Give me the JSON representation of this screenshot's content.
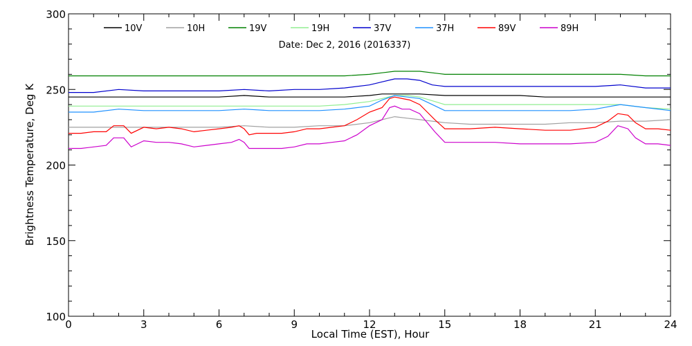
{
  "chart_data": {
    "type": "line",
    "title": "Date: Dec  2, 2016 (2016337)",
    "xlabel": "Local Time (EST), Hour",
    "ylabel": "Brightness Temperature, Deg K",
    "xlim": [
      0,
      24
    ],
    "ylim": [
      100,
      300
    ],
    "x_ticks": [
      "0",
      "3",
      "6",
      "9",
      "12",
      "15",
      "18",
      "21",
      "24"
    ],
    "y_ticks": [
      "100",
      "150",
      "200",
      "250",
      "300"
    ],
    "grid": false,
    "legend_position": "top",
    "series": [
      {
        "name": "10V",
        "color": "#000000",
        "x": [
          0,
          1,
          2,
          3,
          4,
          5,
          6,
          7,
          8,
          9,
          10,
          11,
          12,
          12.5,
          13,
          13.5,
          14,
          15,
          16,
          17,
          18,
          19,
          20,
          21,
          22,
          23,
          24
        ],
        "y": [
          245,
          245,
          245,
          245,
          245,
          245,
          245,
          246,
          245,
          245,
          245,
          245,
          246,
          247,
          247,
          247,
          247,
          246,
          246,
          246,
          246,
          245,
          245,
          245,
          245,
          245,
          245
        ]
      },
      {
        "name": "10H",
        "color": "#a0a0a0",
        "x": [
          0,
          1,
          2,
          3,
          4,
          5,
          6,
          7,
          8,
          9,
          10,
          11,
          12,
          12.5,
          13,
          13.5,
          14,
          15,
          16,
          17,
          18,
          19,
          20,
          21,
          22,
          23,
          24
        ],
        "y": [
          225,
          225,
          225,
          225,
          225,
          225,
          225,
          226,
          225,
          225,
          226,
          226,
          228,
          230,
          232,
          231,
          230,
          228,
          227,
          227,
          227,
          227,
          228,
          228,
          229,
          229,
          230
        ]
      },
      {
        "name": "19V",
        "color": "#008000",
        "x": [
          0,
          1,
          2,
          3,
          4,
          5,
          6,
          7,
          8,
          9,
          10,
          11,
          12,
          12.5,
          13,
          13.5,
          14,
          15,
          16,
          17,
          18,
          19,
          20,
          21,
          22,
          23,
          24
        ],
        "y": [
          259,
          259,
          259,
          259,
          259,
          259,
          259,
          259,
          259,
          259,
          259,
          259,
          260,
          261,
          262,
          262,
          262,
          260,
          260,
          260,
          260,
          260,
          260,
          260,
          260,
          259,
          259
        ]
      },
      {
        "name": "19H",
        "color": "#90ee90",
        "x": [
          0,
          1,
          2,
          3,
          4,
          5,
          6,
          7,
          8,
          9,
          10,
          11,
          12,
          12.5,
          13,
          13.5,
          14,
          15,
          16,
          17,
          18,
          19,
          20,
          21,
          22,
          23,
          24
        ],
        "y": [
          239,
          239,
          239,
          239,
          239,
          239,
          239,
          239,
          239,
          239,
          239,
          240,
          242,
          244,
          246,
          246,
          245,
          240,
          240,
          240,
          240,
          240,
          240,
          240,
          240,
          238,
          237
        ]
      },
      {
        "name": "37V",
        "color": "#0000cd",
        "x": [
          0,
          1,
          2,
          3,
          4,
          5,
          6,
          7,
          8,
          9,
          10,
          11,
          12,
          12.5,
          13,
          13.5,
          14,
          14.5,
          15,
          16,
          17,
          18,
          19,
          20,
          21,
          22,
          23,
          24
        ],
        "y": [
          248,
          248,
          250,
          249,
          249,
          249,
          249,
          250,
          249,
          250,
          250,
          251,
          253,
          255,
          257,
          257,
          256,
          253,
          252,
          252,
          252,
          252,
          252,
          252,
          252,
          253,
          251,
          251
        ]
      },
      {
        "name": "37H",
        "color": "#1e90ff",
        "x": [
          0,
          1,
          2,
          3,
          4,
          5,
          6,
          7,
          8,
          9,
          10,
          11,
          12,
          12.5,
          13,
          13.5,
          14,
          14.5,
          15,
          16,
          17,
          18,
          19,
          20,
          21,
          22,
          23,
          24
        ],
        "y": [
          235,
          235,
          237,
          236,
          236,
          236,
          236,
          237,
          236,
          236,
          236,
          237,
          239,
          243,
          246,
          245,
          244,
          240,
          236,
          236,
          236,
          236,
          236,
          236,
          237,
          240,
          238,
          236
        ]
      },
      {
        "name": "89V",
        "color": "#ff0000",
        "x": [
          0,
          0.5,
          1,
          1.5,
          1.8,
          2.2,
          2.5,
          3,
          3.5,
          4,
          4.5,
          5,
          5.5,
          6,
          6.5,
          6.8,
          7,
          7.2,
          7.5,
          8,
          8.5,
          9,
          9.5,
          10,
          10.5,
          11,
          11.5,
          12,
          12.5,
          12.8,
          13,
          13.3,
          13.6,
          14,
          14.3,
          14.6,
          15,
          16,
          17,
          18,
          19,
          20,
          21,
          21.5,
          21.9,
          22.3,
          22.6,
          23,
          23.5,
          24
        ],
        "y": [
          221,
          221,
          222,
          222,
          226,
          226,
          221,
          225,
          224,
          225,
          224,
          222,
          223,
          224,
          225,
          226,
          224,
          220,
          221,
          221,
          221,
          222,
          224,
          224,
          225,
          226,
          230,
          235,
          238,
          244,
          245,
          244,
          243,
          240,
          235,
          230,
          224,
          224,
          225,
          224,
          223,
          223,
          225,
          229,
          234,
          233,
          228,
          224,
          224,
          223
        ]
      },
      {
        "name": "89H",
        "color": "#cc00cc",
        "x": [
          0,
          0.5,
          1,
          1.5,
          1.8,
          2.2,
          2.5,
          3,
          3.5,
          4,
          4.5,
          5,
          5.5,
          6,
          6.5,
          6.8,
          7,
          7.2,
          7.5,
          8,
          8.5,
          9,
          9.5,
          10,
          10.5,
          11,
          11.5,
          12,
          12.5,
          12.8,
          13,
          13.3,
          13.6,
          14,
          14.3,
          14.6,
          15,
          16,
          17,
          18,
          19,
          20,
          21,
          21.5,
          21.9,
          22.3,
          22.6,
          23,
          23.5,
          24
        ],
        "y": [
          211,
          211,
          212,
          213,
          218,
          218,
          212,
          216,
          215,
          215,
          214,
          212,
          213,
          214,
          215,
          217,
          215,
          211,
          211,
          211,
          211,
          212,
          214,
          214,
          215,
          216,
          220,
          226,
          230,
          238,
          239,
          237,
          237,
          234,
          228,
          222,
          215,
          215,
          215,
          214,
          214,
          214,
          215,
          219,
          226,
          224,
          218,
          214,
          214,
          213
        ]
      }
    ]
  }
}
